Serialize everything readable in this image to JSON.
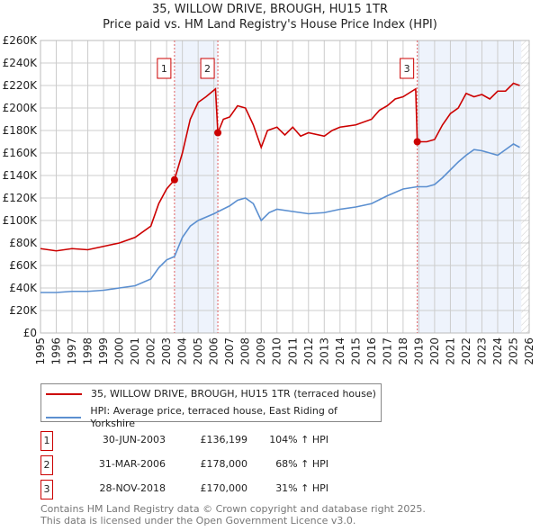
{
  "chart_data": {
    "type": "line",
    "title": "35, WILLOW DRIVE, BROUGH, HU15 1TR",
    "subtitle": "Price paid vs. HM Land Registry's House Price Index (HPI)",
    "xlim": [
      1995,
      2026
    ],
    "ylim": [
      0,
      260000
    ],
    "xticks": [
      1995,
      1996,
      1997,
      1998,
      1999,
      2000,
      2001,
      2002,
      2003,
      2004,
      2005,
      2006,
      2007,
      2008,
      2009,
      2010,
      2011,
      2012,
      2013,
      2014,
      2015,
      2016,
      2017,
      2018,
      2019,
      2020,
      2021,
      2022,
      2023,
      2024,
      2025,
      2026
    ],
    "yticks": [
      0,
      20000,
      40000,
      60000,
      80000,
      100000,
      120000,
      140000,
      160000,
      180000,
      200000,
      220000,
      240000,
      260000
    ],
    "ytick_labels": [
      "£0",
      "£20K",
      "£40K",
      "£60K",
      "£80K",
      "£100K",
      "£120K",
      "£140K",
      "£160K",
      "£180K",
      "£200K",
      "£220K",
      "£240K",
      "£260K"
    ],
    "grid": true,
    "shaded_ranges": [
      [
        2003.5,
        2006.25
      ],
      [
        2018.9,
        2025.5
      ]
    ],
    "series": [
      {
        "name": "35, WILLOW DRIVE, BROUGH, HU15 1TR (terraced house)",
        "color": "#cc0000",
        "points": [
          [
            1995,
            75000
          ],
          [
            1996,
            73000
          ],
          [
            1997,
            75000
          ],
          [
            1998,
            74000
          ],
          [
            1999,
            77000
          ],
          [
            2000,
            80000
          ],
          [
            2001,
            85000
          ],
          [
            2002,
            95000
          ],
          [
            2002.5,
            115000
          ],
          [
            2003,
            128000
          ],
          [
            2003.5,
            136199
          ],
          [
            2004,
            160000
          ],
          [
            2004.5,
            190000
          ],
          [
            2005,
            205000
          ],
          [
            2005.5,
            210000
          ],
          [
            2006.1,
            217000
          ],
          [
            2006.25,
            178000
          ],
          [
            2006.6,
            190000
          ],
          [
            2007,
            192000
          ],
          [
            2007.5,
            202000
          ],
          [
            2008,
            200000
          ],
          [
            2008.5,
            185000
          ],
          [
            2009,
            165000
          ],
          [
            2009.4,
            180000
          ],
          [
            2010,
            183000
          ],
          [
            2010.5,
            176000
          ],
          [
            2011,
            183000
          ],
          [
            2011.5,
            175000
          ],
          [
            2012,
            178000
          ],
          [
            2013,
            175000
          ],
          [
            2013.5,
            180000
          ],
          [
            2014,
            183000
          ],
          [
            2015,
            185000
          ],
          [
            2016,
            190000
          ],
          [
            2016.5,
            198000
          ],
          [
            2017,
            202000
          ],
          [
            2017.5,
            208000
          ],
          [
            2018,
            210000
          ],
          [
            2018.8,
            217000
          ],
          [
            2018.9,
            170000
          ],
          [
            2019.5,
            170000
          ],
          [
            2020,
            172000
          ],
          [
            2020.5,
            185000
          ],
          [
            2021,
            195000
          ],
          [
            2021.5,
            200000
          ],
          [
            2022,
            213000
          ],
          [
            2022.5,
            210000
          ],
          [
            2023,
            212000
          ],
          [
            2023.5,
            208000
          ],
          [
            2024,
            215000
          ],
          [
            2024.5,
            215000
          ],
          [
            2025,
            222000
          ],
          [
            2025.4,
            220000
          ]
        ]
      },
      {
        "name": "HPI: Average price, terraced house, East Riding of Yorkshire",
        "color": "#5b8fd0",
        "points": [
          [
            1995,
            36000
          ],
          [
            1996,
            36000
          ],
          [
            1997,
            37000
          ],
          [
            1998,
            37000
          ],
          [
            1999,
            38000
          ],
          [
            2000,
            40000
          ],
          [
            2001,
            42000
          ],
          [
            2002,
            48000
          ],
          [
            2002.5,
            58000
          ],
          [
            2003,
            65000
          ],
          [
            2003.5,
            68000
          ],
          [
            2004,
            85000
          ],
          [
            2004.5,
            95000
          ],
          [
            2005,
            100000
          ],
          [
            2006,
            106000
          ],
          [
            2007,
            113000
          ],
          [
            2007.5,
            118000
          ],
          [
            2008,
            120000
          ],
          [
            2008.5,
            115000
          ],
          [
            2009,
            100000
          ],
          [
            2009.5,
            107000
          ],
          [
            2010,
            110000
          ],
          [
            2011,
            108000
          ],
          [
            2012,
            106000
          ],
          [
            2013,
            107000
          ],
          [
            2014,
            110000
          ],
          [
            2015,
            112000
          ],
          [
            2016,
            115000
          ],
          [
            2017,
            122000
          ],
          [
            2018,
            128000
          ],
          [
            2018.9,
            130000
          ],
          [
            2019.5,
            130000
          ],
          [
            2020,
            132000
          ],
          [
            2020.5,
            138000
          ],
          [
            2021,
            145000
          ],
          [
            2021.5,
            152000
          ],
          [
            2022,
            158000
          ],
          [
            2022.5,
            163000
          ],
          [
            2023,
            162000
          ],
          [
            2023.5,
            160000
          ],
          [
            2024,
            158000
          ],
          [
            2024.5,
            163000
          ],
          [
            2025,
            168000
          ],
          [
            2025.4,
            165000
          ]
        ]
      }
    ],
    "sales": [
      {
        "n": "1",
        "x": 2003.5,
        "y": 136199,
        "date": "30-JUN-2003",
        "price": "£136,199",
        "hpi": "104% ↑ HPI"
      },
      {
        "n": "2",
        "x": 2006.25,
        "y": 178000,
        "date": "31-MAR-2006",
        "price": "£178,000",
        "hpi": "68% ↑ HPI"
      },
      {
        "n": "3",
        "x": 2018.9,
        "y": 170000,
        "date": "28-NOV-2018",
        "price": "£170,000",
        "hpi": "31% ↑ HPI"
      }
    ],
    "legend_position": "bottom"
  },
  "footer": {
    "line1": "Contains HM Land Registry data © Crown copyright and database right 2025.",
    "line2": "This data is licensed under the Open Government Licence v3.0."
  }
}
